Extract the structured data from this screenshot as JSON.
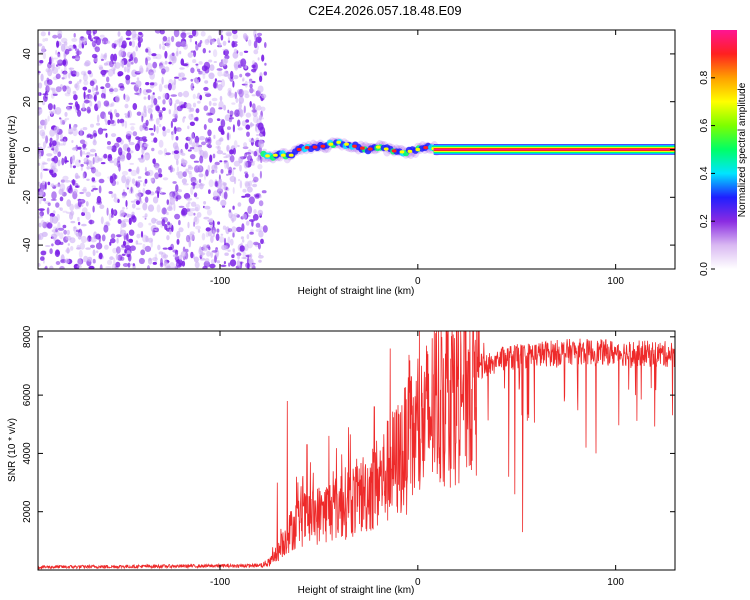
{
  "title": "C2E4.2026.057.18.48.E09",
  "colors": {
    "noise": "#7a1fe6",
    "noise_light": "#cfb2f5",
    "snr_line": "#ee2a2a",
    "colorbar": [
      "#ffffff",
      "#d9b8f2",
      "#8a2be2",
      "#1f1fff",
      "#00e5ff",
      "#00ff66",
      "#7dff00",
      "#ffff00",
      "#ffa000",
      "#ff2020",
      "#ff1493"
    ]
  },
  "chart_data": [
    {
      "type": "heatmap",
      "title": "C2E4.2026.057.18.48.E09",
      "xlabel": "Height of straight line (km)",
      "ylabel": "Frequency (Hz)",
      "xlim": [
        -192,
        130
      ],
      "ylim": [
        -50,
        50
      ],
      "xticks": [
        -100,
        0,
        100
      ],
      "xtick_labels": [
        "-100",
        "0",
        "100"
      ],
      "yticks": [
        -40,
        -20,
        0,
        20,
        40
      ],
      "ytick_labels": [
        "-40",
        "-20",
        "0",
        "20",
        "40"
      ],
      "noise_region_x": [
        -192,
        -77
      ],
      "signal_track": {
        "x": [
          -78,
          -75,
          -70,
          -65,
          -60,
          -55,
          -50,
          -45,
          -40,
          -35,
          -30,
          -25,
          -20,
          -15,
          -10,
          -5,
          0,
          5,
          10,
          20,
          40,
          60,
          80,
          100,
          130
        ],
        "freq": [
          -2,
          -3,
          -2,
          -3,
          0,
          1,
          1,
          2,
          3,
          2,
          1,
          0,
          1,
          0,
          -1,
          -1,
          0,
          1,
          0,
          0,
          0,
          0,
          0,
          0,
          0
        ]
      },
      "colorbar": {
        "label": "Normalized spectral amplitude",
        "ticks": [
          0.0,
          0.2,
          0.4,
          0.6,
          0.8
        ],
        "tick_labels": [
          "0.0",
          "0.2",
          "0.4",
          "0.6",
          "0.8"
        ],
        "range": [
          0,
          1
        ]
      }
    },
    {
      "type": "line",
      "xlabel": "Height of straight line (km)",
      "ylabel": "SNR (10 * v/v)",
      "xlim": [
        -192,
        130
      ],
      "ylim": [
        0,
        8200
      ],
      "xticks": [
        -100,
        0,
        100
      ],
      "xtick_labels": [
        "-100",
        "0",
        "100"
      ],
      "yticks": [
        2000,
        4000,
        6000,
        8000
      ],
      "ytick_labels": [
        "2000",
        "4000",
        "6000",
        "8000"
      ],
      "envelope": {
        "x": [
          -192,
          -80,
          -75,
          -70,
          -65,
          -60,
          -50,
          -40,
          -30,
          -20,
          -10,
          0,
          10,
          20,
          30,
          40,
          60,
          80,
          100,
          130
        ],
        "y": [
          100,
          150,
          250,
          700,
          1300,
          1700,
          1900,
          2200,
          2500,
          3000,
          3800,
          4700,
          5700,
          6500,
          6900,
          7200,
          7400,
          7500,
          7450,
          7400
        ]
      },
      "spikes": [
        {
          "x": -71,
          "y": 3000
        },
        {
          "x": -66,
          "y": 5800
        },
        {
          "x": -56,
          "y": 4300
        },
        {
          "x": -45,
          "y": 4600
        },
        {
          "x": -35,
          "y": 4900
        },
        {
          "x": -22,
          "y": 5600
        },
        {
          "x": -14,
          "y": 7600
        },
        {
          "x": -5,
          "y": 6000
        },
        {
          "x": 8,
          "y": 6700
        },
        {
          "x": 12,
          "y": 7700
        }
      ],
      "dips": [
        {
          "x": 46,
          "y": 3200
        },
        {
          "x": 49,
          "y": 2600
        },
        {
          "x": 53,
          "y": 1300
        },
        {
          "x": 85,
          "y": 4200
        },
        {
          "x": 90,
          "y": 4000
        },
        {
          "x": 110,
          "y": 6000
        }
      ]
    }
  ]
}
